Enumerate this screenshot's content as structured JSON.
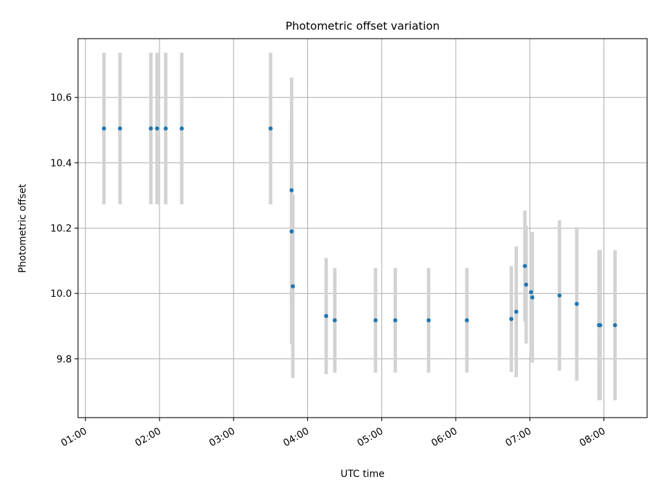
{
  "chart_data": {
    "type": "scatter",
    "title": "Photometric offset variation",
    "xlabel": "UTC time",
    "ylabel": "Photometric offset",
    "grid": true,
    "x_unit": "UTC time (HH:MM)",
    "xlim": [
      "00:54",
      "08:35"
    ],
    "ylim": [
      9.62,
      10.78
    ],
    "xticks": [
      "01:00",
      "02:00",
      "03:00",
      "04:00",
      "05:00",
      "06:00",
      "07:00",
      "08:00"
    ],
    "yticks": [
      "9.8",
      "10.0",
      "10.2",
      "10.4",
      "10.6"
    ],
    "colors": {
      "marker": "#1f77b4",
      "errorbar": "#d3d3d3",
      "grid": "#b0b0b0",
      "axes": "#000000"
    },
    "series": [
      {
        "points": [
          {
            "x": "01:15",
            "y": 10.505,
            "err": 0.232
          },
          {
            "x": "01:28",
            "y": 10.505,
            "err": 0.232
          },
          {
            "x": "01:53",
            "y": 10.505,
            "err": 0.232
          },
          {
            "x": "01:58",
            "y": 10.505,
            "err": 0.232
          },
          {
            "x": "02:05",
            "y": 10.505,
            "err": 0.232
          },
          {
            "x": "02:18",
            "y": 10.505,
            "err": 0.232
          },
          {
            "x": "03:30",
            "y": 10.505,
            "err": 0.232
          },
          {
            "x": "03:47",
            "y": 10.316,
            "err": 0.345
          },
          {
            "x": "03:47",
            "y": 10.19,
            "err": 0.345
          },
          {
            "x": "03:48",
            "y": 10.022,
            "err": 0.281
          },
          {
            "x": "04:15",
            "y": 9.931,
            "err": 0.178
          },
          {
            "x": "04:22",
            "y": 9.918,
            "err": 0.16
          },
          {
            "x": "04:55",
            "y": 9.918,
            "err": 0.16
          },
          {
            "x": "05:11",
            "y": 9.918,
            "err": 0.16
          },
          {
            "x": "05:38",
            "y": 9.918,
            "err": 0.16
          },
          {
            "x": "06:09",
            "y": 9.918,
            "err": 0.16
          },
          {
            "x": "06:45",
            "y": 9.922,
            "err": 0.162
          },
          {
            "x": "06:49",
            "y": 9.944,
            "err": 0.2
          },
          {
            "x": "06:56",
            "y": 10.084,
            "err": 0.17
          },
          {
            "x": "06:57",
            "y": 10.027,
            "err": 0.18
          },
          {
            "x": "07:01",
            "y": 10.004,
            "err": 0.185
          },
          {
            "x": "07:02",
            "y": 9.988,
            "err": 0.2
          },
          {
            "x": "07:24",
            "y": 9.994,
            "err": 0.23
          },
          {
            "x": "07:38",
            "y": 9.968,
            "err": 0.235
          },
          {
            "x": "07:56",
            "y": 9.903,
            "err": 0.23
          },
          {
            "x": "07:57",
            "y": 9.903,
            "err": 0.23
          },
          {
            "x": "08:09",
            "y": 9.903,
            "err": 0.23
          }
        ]
      }
    ]
  }
}
